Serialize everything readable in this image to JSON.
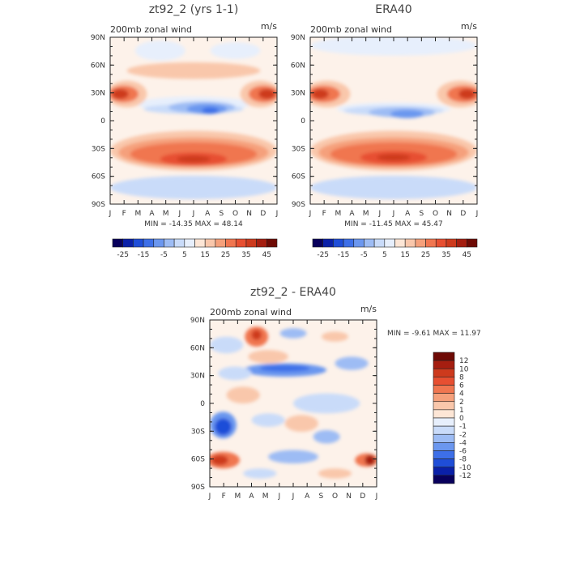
{
  "chart_data": [
    {
      "type": "heatmap",
      "title": "zt92_2 (yrs 1-1)",
      "subtitle": "200mb zonal wind",
      "units": "m/s",
      "x": [
        "J",
        "F",
        "M",
        "A",
        "M",
        "J",
        "J",
        "A",
        "S",
        "O",
        "N",
        "D",
        "J"
      ],
      "y": [
        "90N",
        "60N",
        "30N",
        "0",
        "30S",
        "60S",
        "90S"
      ],
      "min_max_label": "MIN = -14.35 MAX =   48.14",
      "colorbar": {
        "labels": [
          "-25",
          "-15",
          "-5",
          "5",
          "15",
          "25",
          "35",
          "45"
        ],
        "colors": [
          "#08005c",
          "#0a20a8",
          "#1f4ed8",
          "#3d6fe8",
          "#6b97ef",
          "#9dbcf4",
          "#c9dbf9",
          "#e7effc",
          "#fde6d6",
          "#f9c7ab",
          "#f5a07b",
          "#f07650",
          "#e74f31",
          "#cd3a1d",
          "#a51e10",
          "#6e0a05"
        ]
      },
      "field": {
        "base": "#fdf2ea",
        "blobs": [
          {
            "x": 0.5,
            "y": 0.4,
            "rx": 0.34,
            "ry": 0.045,
            "color": "#e7effc"
          },
          {
            "x": 0.5,
            "y": 0.43,
            "rx": 0.3,
            "ry": 0.03,
            "color": "#c9dbf9"
          },
          {
            "x": 0.55,
            "y": 0.42,
            "rx": 0.2,
            "ry": 0.035,
            "color": "#9dbcf4"
          },
          {
            "x": 0.58,
            "y": 0.43,
            "rx": 0.12,
            "ry": 0.03,
            "color": "#6b97ef"
          },
          {
            "x": 0.6,
            "y": 0.44,
            "rx": 0.05,
            "ry": 0.02,
            "color": "#3d6fe8"
          },
          {
            "x": 0.1,
            "y": 0.34,
            "rx": 0.12,
            "ry": 0.08,
            "color": "#f9c7ab"
          },
          {
            "x": 0.9,
            "y": 0.34,
            "rx": 0.12,
            "ry": 0.08,
            "color": "#f9c7ab"
          },
          {
            "x": 0.08,
            "y": 0.34,
            "rx": 0.09,
            "ry": 0.05,
            "color": "#f07650"
          },
          {
            "x": 0.92,
            "y": 0.34,
            "rx": 0.09,
            "ry": 0.05,
            "color": "#f07650"
          },
          {
            "x": 0.06,
            "y": 0.34,
            "rx": 0.05,
            "ry": 0.03,
            "color": "#cd3a1d"
          },
          {
            "x": 0.94,
            "y": 0.34,
            "rx": 0.05,
            "ry": 0.03,
            "color": "#cd3a1d"
          },
          {
            "x": 0.5,
            "y": 0.68,
            "rx": 0.5,
            "ry": 0.12,
            "color": "#f9c7ab"
          },
          {
            "x": 0.5,
            "y": 0.69,
            "rx": 0.45,
            "ry": 0.09,
            "color": "#f5a07b"
          },
          {
            "x": 0.5,
            "y": 0.7,
            "rx": 0.38,
            "ry": 0.07,
            "color": "#f07650"
          },
          {
            "x": 0.5,
            "y": 0.73,
            "rx": 0.2,
            "ry": 0.04,
            "color": "#e74f31"
          },
          {
            "x": 0.5,
            "y": 0.73,
            "rx": 0.1,
            "ry": 0.02,
            "color": "#cd3a1d"
          },
          {
            "x": 0.5,
            "y": 0.9,
            "rx": 0.5,
            "ry": 0.07,
            "color": "#c9dbf9"
          },
          {
            "x": 0.3,
            "y": 0.08,
            "rx": 0.15,
            "ry": 0.06,
            "color": "#e7effc"
          },
          {
            "x": 0.75,
            "y": 0.08,
            "rx": 0.15,
            "ry": 0.05,
            "color": "#e7effc"
          },
          {
            "x": 0.5,
            "y": 0.2,
            "rx": 0.4,
            "ry": 0.05,
            "color": "#f9c7ab"
          }
        ]
      }
    },
    {
      "type": "heatmap",
      "title": "ERA40",
      "subtitle": "200mb zonal wind",
      "units": "m/s",
      "x": [
        "J",
        "F",
        "M",
        "A",
        "M",
        "J",
        "J",
        "A",
        "S",
        "O",
        "N",
        "D",
        "J"
      ],
      "y": [
        "90N",
        "60N",
        "30N",
        "0",
        "30S",
        "60S",
        "90S"
      ],
      "min_max_label": "MIN = -11.45 MAX =   45.47",
      "colorbar": {
        "labels": [
          "-25",
          "-15",
          "-5",
          "5",
          "15",
          "25",
          "35",
          "45"
        ],
        "colors": [
          "#08005c",
          "#0a20a8",
          "#1f4ed8",
          "#3d6fe8",
          "#6b97ef",
          "#9dbcf4",
          "#c9dbf9",
          "#e7effc",
          "#fde6d6",
          "#f9c7ab",
          "#f5a07b",
          "#f07650",
          "#e74f31",
          "#cd3a1d",
          "#a51e10",
          "#6e0a05"
        ]
      },
      "field": {
        "base": "#fdf2ea",
        "blobs": [
          {
            "x": 0.5,
            "y": 0.43,
            "rx": 0.34,
            "ry": 0.04,
            "color": "#e7effc"
          },
          {
            "x": 0.5,
            "y": 0.44,
            "rx": 0.3,
            "ry": 0.03,
            "color": "#c9dbf9"
          },
          {
            "x": 0.55,
            "y": 0.45,
            "rx": 0.2,
            "ry": 0.03,
            "color": "#9dbcf4"
          },
          {
            "x": 0.58,
            "y": 0.46,
            "rx": 0.1,
            "ry": 0.025,
            "color": "#6b97ef"
          },
          {
            "x": 0.1,
            "y": 0.34,
            "rx": 0.14,
            "ry": 0.08,
            "color": "#f9c7ab"
          },
          {
            "x": 0.9,
            "y": 0.34,
            "rx": 0.14,
            "ry": 0.08,
            "color": "#f9c7ab"
          },
          {
            "x": 0.08,
            "y": 0.34,
            "rx": 0.1,
            "ry": 0.05,
            "color": "#f07650"
          },
          {
            "x": 0.92,
            "y": 0.34,
            "rx": 0.1,
            "ry": 0.05,
            "color": "#f07650"
          },
          {
            "x": 0.06,
            "y": 0.34,
            "rx": 0.05,
            "ry": 0.03,
            "color": "#cd3a1d"
          },
          {
            "x": 0.94,
            "y": 0.34,
            "rx": 0.05,
            "ry": 0.03,
            "color": "#cd3a1d"
          },
          {
            "x": 0.5,
            "y": 0.68,
            "rx": 0.5,
            "ry": 0.12,
            "color": "#f9c7ab"
          },
          {
            "x": 0.5,
            "y": 0.69,
            "rx": 0.45,
            "ry": 0.09,
            "color": "#f5a07b"
          },
          {
            "x": 0.5,
            "y": 0.7,
            "rx": 0.38,
            "ry": 0.07,
            "color": "#f07650"
          },
          {
            "x": 0.5,
            "y": 0.72,
            "rx": 0.2,
            "ry": 0.04,
            "color": "#e74f31"
          },
          {
            "x": 0.5,
            "y": 0.72,
            "rx": 0.1,
            "ry": 0.02,
            "color": "#cd3a1d"
          },
          {
            "x": 0.5,
            "y": 0.9,
            "rx": 0.5,
            "ry": 0.07,
            "color": "#c9dbf9"
          },
          {
            "x": 0.5,
            "y": 0.05,
            "rx": 0.5,
            "ry": 0.06,
            "color": "#e7effc"
          }
        ]
      }
    },
    {
      "type": "heatmap",
      "title": "zt92_2 - ERA40",
      "subtitle": "200mb zonal wind",
      "units": "m/s",
      "x": [
        "J",
        "F",
        "M",
        "A",
        "M",
        "J",
        "J",
        "A",
        "S",
        "O",
        "N",
        "D",
        "J"
      ],
      "y": [
        "90N",
        "60N",
        "30N",
        "0",
        "30S",
        "60S",
        "90S"
      ],
      "min_max_label": "MIN =   -9.61 MAX =   11.97",
      "colorbar": {
        "labels": [
          "12",
          "10",
          "8",
          "6",
          "4",
          "2",
          "1",
          "0",
          "-1",
          "-2",
          "-4",
          "-6",
          "-8",
          "-10",
          "-12"
        ],
        "colors": [
          "#6e0a05",
          "#a51e10",
          "#cd3a1d",
          "#e74f31",
          "#f07650",
          "#f5a07b",
          "#f9c7ab",
          "#fde6d6",
          "#e7effc",
          "#c9dbf9",
          "#9dbcf4",
          "#6b97ef",
          "#3d6fe8",
          "#1f4ed8",
          "#0a20a8",
          "#08005c"
        ]
      },
      "field": {
        "base": "#fdf2ea",
        "blobs": [
          {
            "x": 0.28,
            "y": 0.1,
            "rx": 0.07,
            "ry": 0.06,
            "color": "#f07650"
          },
          {
            "x": 0.28,
            "y": 0.09,
            "rx": 0.03,
            "ry": 0.03,
            "color": "#cd3a1d"
          },
          {
            "x": 0.5,
            "y": 0.08,
            "rx": 0.08,
            "ry": 0.03,
            "color": "#9dbcf4"
          },
          {
            "x": 0.75,
            "y": 0.1,
            "rx": 0.08,
            "ry": 0.03,
            "color": "#f9c7ab"
          },
          {
            "x": 0.1,
            "y": 0.15,
            "rx": 0.1,
            "ry": 0.05,
            "color": "#c9dbf9"
          },
          {
            "x": 0.45,
            "y": 0.3,
            "rx": 0.25,
            "ry": 0.04,
            "color": "#6b97ef"
          },
          {
            "x": 0.45,
            "y": 0.29,
            "rx": 0.15,
            "ry": 0.02,
            "color": "#3d6fe8"
          },
          {
            "x": 0.85,
            "y": 0.26,
            "rx": 0.1,
            "ry": 0.04,
            "color": "#9dbcf4"
          },
          {
            "x": 0.15,
            "y": 0.32,
            "rx": 0.1,
            "ry": 0.04,
            "color": "#c9dbf9"
          },
          {
            "x": 0.35,
            "y": 0.22,
            "rx": 0.12,
            "ry": 0.04,
            "color": "#f9c7ab"
          },
          {
            "x": 0.7,
            "y": 0.5,
            "rx": 0.2,
            "ry": 0.06,
            "color": "#c9dbf9"
          },
          {
            "x": 0.2,
            "y": 0.45,
            "rx": 0.1,
            "ry": 0.05,
            "color": "#f9c7ab"
          },
          {
            "x": 0.08,
            "y": 0.63,
            "rx": 0.08,
            "ry": 0.08,
            "color": "#6b97ef"
          },
          {
            "x": 0.08,
            "y": 0.64,
            "rx": 0.05,
            "ry": 0.05,
            "color": "#1f4ed8"
          },
          {
            "x": 0.35,
            "y": 0.6,
            "rx": 0.1,
            "ry": 0.04,
            "color": "#c9dbf9"
          },
          {
            "x": 0.55,
            "y": 0.62,
            "rx": 0.1,
            "ry": 0.05,
            "color": "#f9c7ab"
          },
          {
            "x": 0.7,
            "y": 0.7,
            "rx": 0.08,
            "ry": 0.04,
            "color": "#9dbcf4"
          },
          {
            "x": 0.08,
            "y": 0.84,
            "rx": 0.1,
            "ry": 0.05,
            "color": "#f07650"
          },
          {
            "x": 0.06,
            "y": 0.84,
            "rx": 0.05,
            "ry": 0.03,
            "color": "#cd3a1d"
          },
          {
            "x": 0.94,
            "y": 0.84,
            "rx": 0.07,
            "ry": 0.04,
            "color": "#f07650"
          },
          {
            "x": 0.96,
            "y": 0.84,
            "rx": 0.03,
            "ry": 0.03,
            "color": "#a51e10"
          },
          {
            "x": 0.5,
            "y": 0.82,
            "rx": 0.15,
            "ry": 0.04,
            "color": "#9dbcf4"
          },
          {
            "x": 0.3,
            "y": 0.92,
            "rx": 0.1,
            "ry": 0.03,
            "color": "#c9dbf9"
          },
          {
            "x": 0.75,
            "y": 0.92,
            "rx": 0.1,
            "ry": 0.03,
            "color": "#f9c7ab"
          }
        ]
      }
    }
  ]
}
